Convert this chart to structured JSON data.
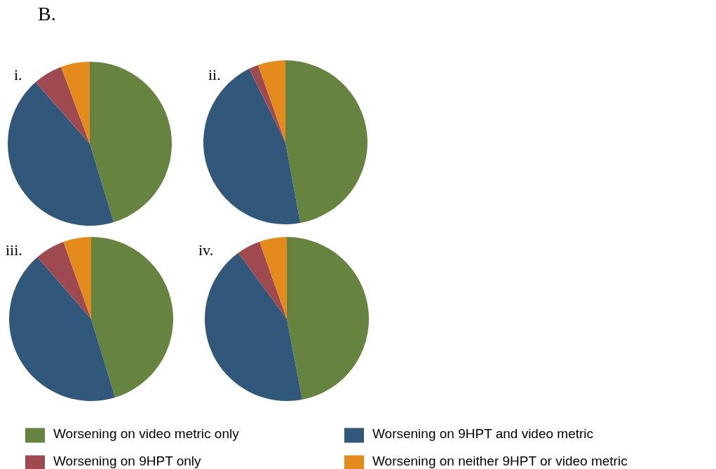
{
  "chart_data": [
    {
      "type": "pie",
      "title": "i.",
      "annotations": [
        "B."
      ],
      "categories": [
        "Worsening on video metric only",
        "Worsening on 9HPT and video metric",
        "Worsening on 9HPT only",
        "Worsening on neither 9HPT or video metric"
      ],
      "values": [
        45.3,
        43.2,
        5.8,
        5.7
      ],
      "colors": [
        "#66843f",
        "#31587b",
        "#9e4a50",
        "#e58b1e"
      ],
      "legend": "bottom"
    },
    {
      "type": "pie",
      "title": "ii.",
      "values": [
        47.1,
        45.6,
        1.9,
        5.4
      ],
      "colors": [
        "#66843f",
        "#31587b",
        "#9e4a50",
        "#e58b1e"
      ]
    },
    {
      "type": "pie",
      "title": "iii.",
      "values": [
        45.3,
        43.3,
        5.9,
        5.5
      ],
      "colors": [
        "#66843f",
        "#31587b",
        "#9e4a50",
        "#e58b1e"
      ]
    },
    {
      "type": "pie",
      "title": "iv.",
      "values": [
        47.0,
        42.9,
        4.7,
        5.4
      ],
      "colors": [
        "#66843f",
        "#31587b",
        "#9e4a50",
        "#e58b1e"
      ]
    }
  ]
}
